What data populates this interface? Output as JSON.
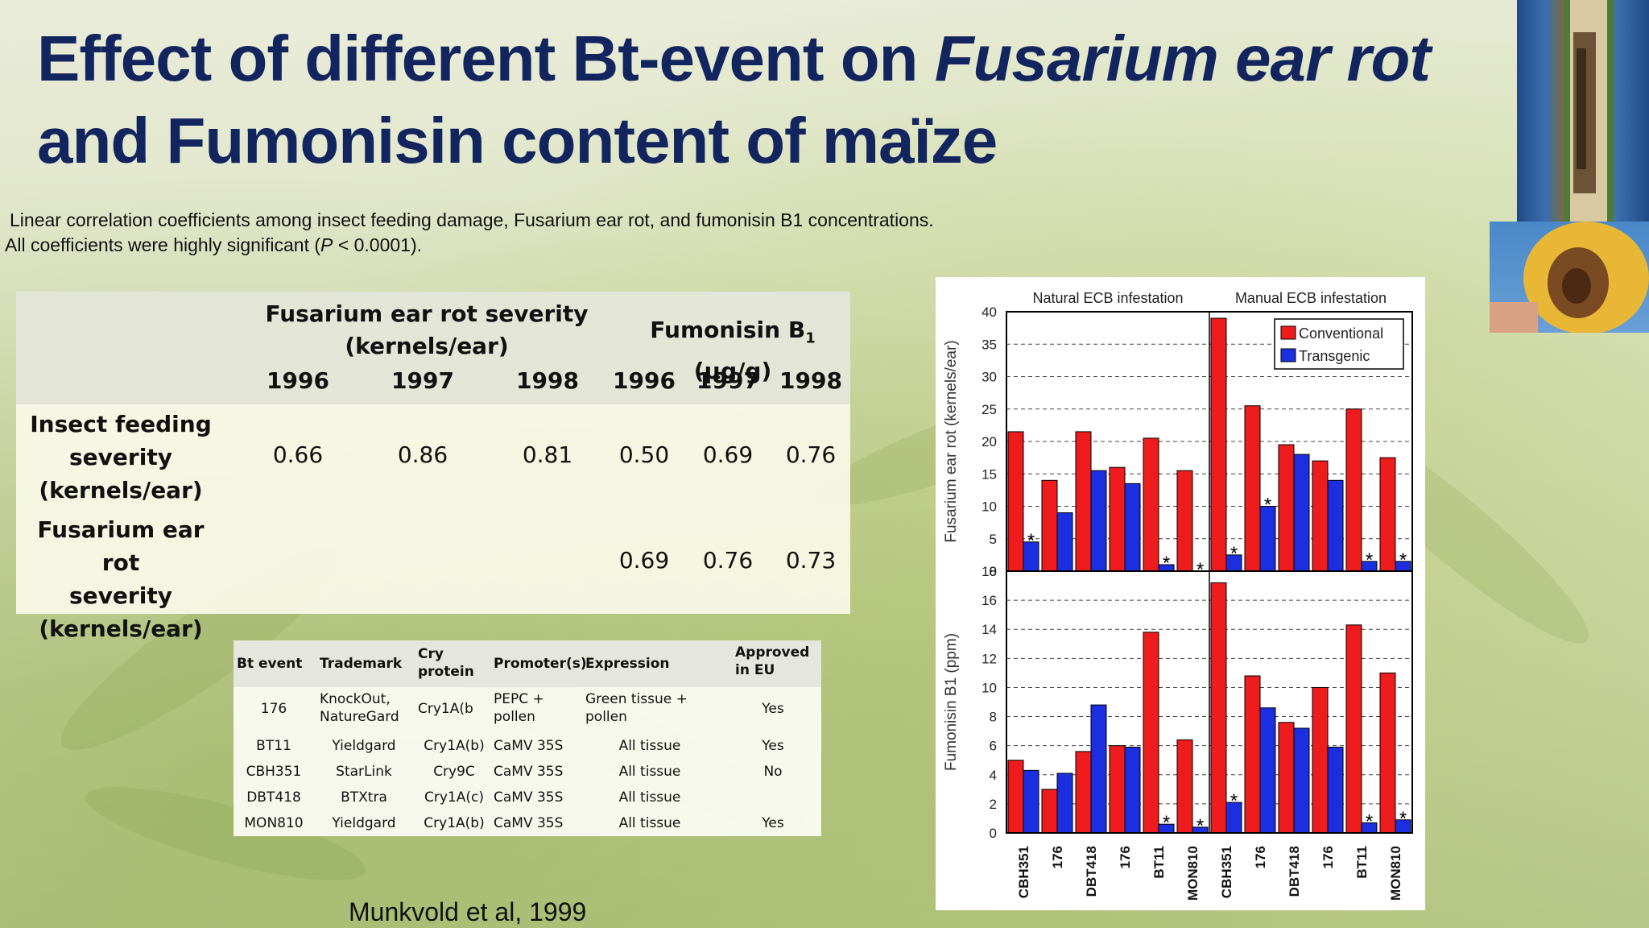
{
  "title": {
    "line1": "Effect of different Bt-event on ",
    "line1_italic": "Fusarium ear rot",
    "line2": "and Fumonisin content of maïze"
  },
  "caption": {
    "line1": "Linear correlation coefficients among insect feeding damage, Fusarium ear rot, and fumonisin B1 concentrations.",
    "line2_prefix": "All coefficients were highly significant (",
    "line2_p": "P",
    "line2_suffix": " < 0.0001)."
  },
  "correlation_table": {
    "group1_line1": "Fusarium ear rot severity",
    "group1_line2": "(kernels/ear)",
    "group2": "Fumonisin B",
    "group2_sub": "1",
    "group2_unit": " (µg/g)",
    "years": [
      "1996",
      "1997",
      "1998",
      "1996",
      "1997",
      "1998"
    ],
    "rows": [
      {
        "label": [
          "Insect feeding",
          "severity",
          "(kernels/ear)"
        ],
        "values": [
          "0.66",
          "0.86",
          "0.81",
          "0.50",
          "0.69",
          "0.76"
        ]
      },
      {
        "label": [
          "Fusarium ear rot",
          "severity",
          "(kernels/ear)"
        ],
        "values": [
          "",
          "",
          "",
          "0.69",
          "0.76",
          "0.73"
        ]
      }
    ]
  },
  "bt_table": {
    "headers": [
      "Bt event",
      "Trademark",
      "Cry protein",
      "Promoter(s)",
      "Expression",
      "Approved in EU"
    ],
    "rows": [
      [
        "176",
        "KnockOut, NatureGard",
        "Cry1A(b",
        "PEPC + pollen",
        "Green tissue + pollen",
        "Yes"
      ],
      [
        "BT11",
        "Yieldgard",
        "Cry1A(b)",
        "CaMV 35S",
        "All tissue",
        "Yes"
      ],
      [
        "CBH351",
        "StarLink",
        "Cry9C",
        "CaMV 35S",
        "All tissue",
        "No"
      ],
      [
        "DBT418",
        "BTXtra",
        "Cry1A(c)",
        "CaMV 35S",
        "All tissue",
        ""
      ],
      [
        "MON810",
        "Yieldgard",
        "Cry1A(b)",
        "CaMV 35S",
        "All tissue",
        "Yes"
      ]
    ]
  },
  "reference": "Munkvold et al, 1999",
  "colors": {
    "title": "#13255e",
    "conventional": "#ee1c1c",
    "transgenic": "#1c2fe0"
  },
  "chart_data": [
    {
      "type": "bar",
      "section_labels": [
        "Natural ECB infestation",
        "Manual ECB infestation"
      ],
      "categories": [
        "CBH351",
        "176",
        "DBT418",
        "176",
        "BT11",
        "MON810",
        "CBH351",
        "176",
        "DBT418",
        "176",
        "BT11",
        "MON810"
      ],
      "ylabel": "Fusarium ear rot (kernels/ear)",
      "ylim": [
        0,
        40
      ],
      "yticks": [
        0,
        5,
        10,
        15,
        20,
        25,
        30,
        35,
        40
      ],
      "grid": true,
      "legend": "top-right",
      "series": [
        {
          "name": "Conventional",
          "values": [
            21.5,
            14,
            21.5,
            16,
            20.5,
            15.5,
            39,
            25.5,
            19.5,
            17,
            25,
            17.5
          ]
        },
        {
          "name": "Transgenic",
          "values": [
            4.5,
            9,
            15.5,
            13.5,
            1,
            0,
            2.5,
            10,
            18,
            14,
            1.5,
            1.5
          ]
        }
      ],
      "significant_marks": [
        0,
        4,
        5,
        6,
        7,
        10,
        11
      ]
    },
    {
      "type": "bar",
      "categories": [
        "CBH351",
        "176",
        "DBT418",
        "176",
        "BT11",
        "MON810",
        "CBH351",
        "176",
        "DBT418",
        "176",
        "BT11",
        "MON810"
      ],
      "ylabel": "Fumonisin B1 (ppm)",
      "ylim": [
        0,
        18
      ],
      "yticks": [
        0,
        2,
        4,
        6,
        8,
        10,
        12,
        14,
        16,
        18
      ],
      "grid": true,
      "series": [
        {
          "name": "Conventional",
          "values": [
            5,
            3,
            5.6,
            6,
            13.8,
            6.4,
            17.2,
            10.8,
            7.6,
            10,
            14.3,
            11
          ]
        },
        {
          "name": "Transgenic",
          "values": [
            4.3,
            4.1,
            8.8,
            5.9,
            0.6,
            0.4,
            2.1,
            8.6,
            7.2,
            5.9,
            0.7,
            0.9
          ]
        }
      ],
      "significant_marks": [
        4,
        5,
        6,
        10,
        11
      ]
    }
  ]
}
